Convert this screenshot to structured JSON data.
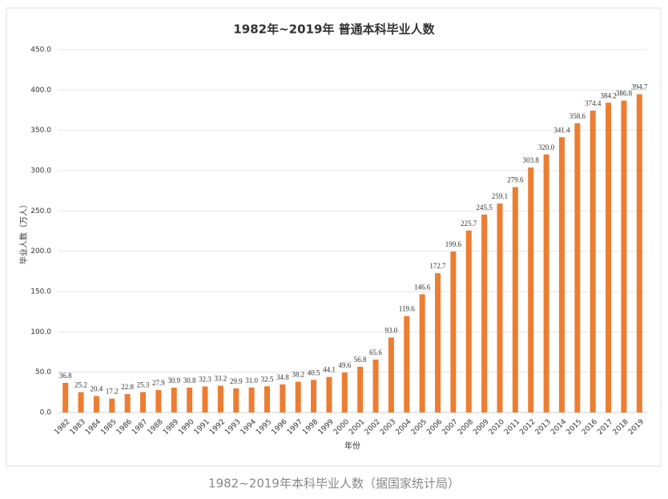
{
  "chart_data": {
    "type": "bar",
    "title": "1982年~2019年 普通本科毕业人数",
    "y_label": "毕业人数（万人）",
    "x_label": "年份",
    "color": "#ed7d31",
    "grid": true,
    "categories": [
      "1982",
      "1983",
      "1984",
      "1985",
      "1986",
      "1987",
      "1988",
      "1989",
      "1990",
      "1991",
      "1992",
      "1993",
      "1994",
      "1995",
      "1996",
      "1997",
      "1998",
      "1999",
      "2000",
      "2001",
      "2002",
      "2003",
      "2004",
      "2005",
      "2006",
      "2007",
      "2008",
      "2009",
      "2010",
      "2011",
      "2012",
      "2013",
      "2014",
      "2015",
      "2016",
      "2017",
      "2018",
      "2019"
    ],
    "values": [
      36.8,
      25.2,
      20.4,
      17.2,
      22.8,
      25.3,
      27.9,
      30.9,
      30.8,
      32.3,
      33.2,
      29.9,
      31.0,
      32.5,
      34.8,
      38.2,
      40.5,
      44.1,
      49.6,
      56.8,
      65.6,
      93.0,
      119.6,
      146.6,
      172.7,
      199.6,
      225.7,
      245.5,
      259.1,
      279.6,
      303.8,
      320.0,
      341.4,
      358.6,
      374.4,
      384.2,
      386.8,
      394.7
    ],
    "value_labels": [
      "36.8",
      "25.2",
      "20.4",
      "17.2",
      "22.8",
      "25.3",
      "27.9",
      "30.9",
      "30.8",
      "32.3",
      "33.2",
      "29.9",
      "31.0",
      "32.5",
      "34.8",
      "38.2",
      "40.5",
      "44.1",
      "49.6",
      "56.8",
      "65.6",
      "93.0",
      "119.6",
      "146.6",
      "172.7",
      "199.6",
      "225.7",
      "245.5",
      "259.1",
      "279.6",
      "303.8",
      "320.0",
      "341.4",
      "358.6",
      "374.4",
      "384.2",
      "386.8",
      "394.7"
    ],
    "ylim": [
      0,
      450
    ],
    "yticks": [
      {
        "value": 0,
        "label": "0.0"
      },
      {
        "value": 50,
        "label": "50.0"
      },
      {
        "value": 100,
        "label": "100.0"
      },
      {
        "value": 150,
        "label": "150.0"
      },
      {
        "value": 200,
        "label": "200.0"
      },
      {
        "value": 250,
        "label": "250.0"
      },
      {
        "value": 300,
        "label": "300.0"
      },
      {
        "value": 350,
        "label": "350.0"
      },
      {
        "value": 400,
        "label": "400.0"
      },
      {
        "value": 450,
        "label": "450.0"
      }
    ]
  },
  "caption": "1982~2019年本科毕业人数（据国家统计局）"
}
